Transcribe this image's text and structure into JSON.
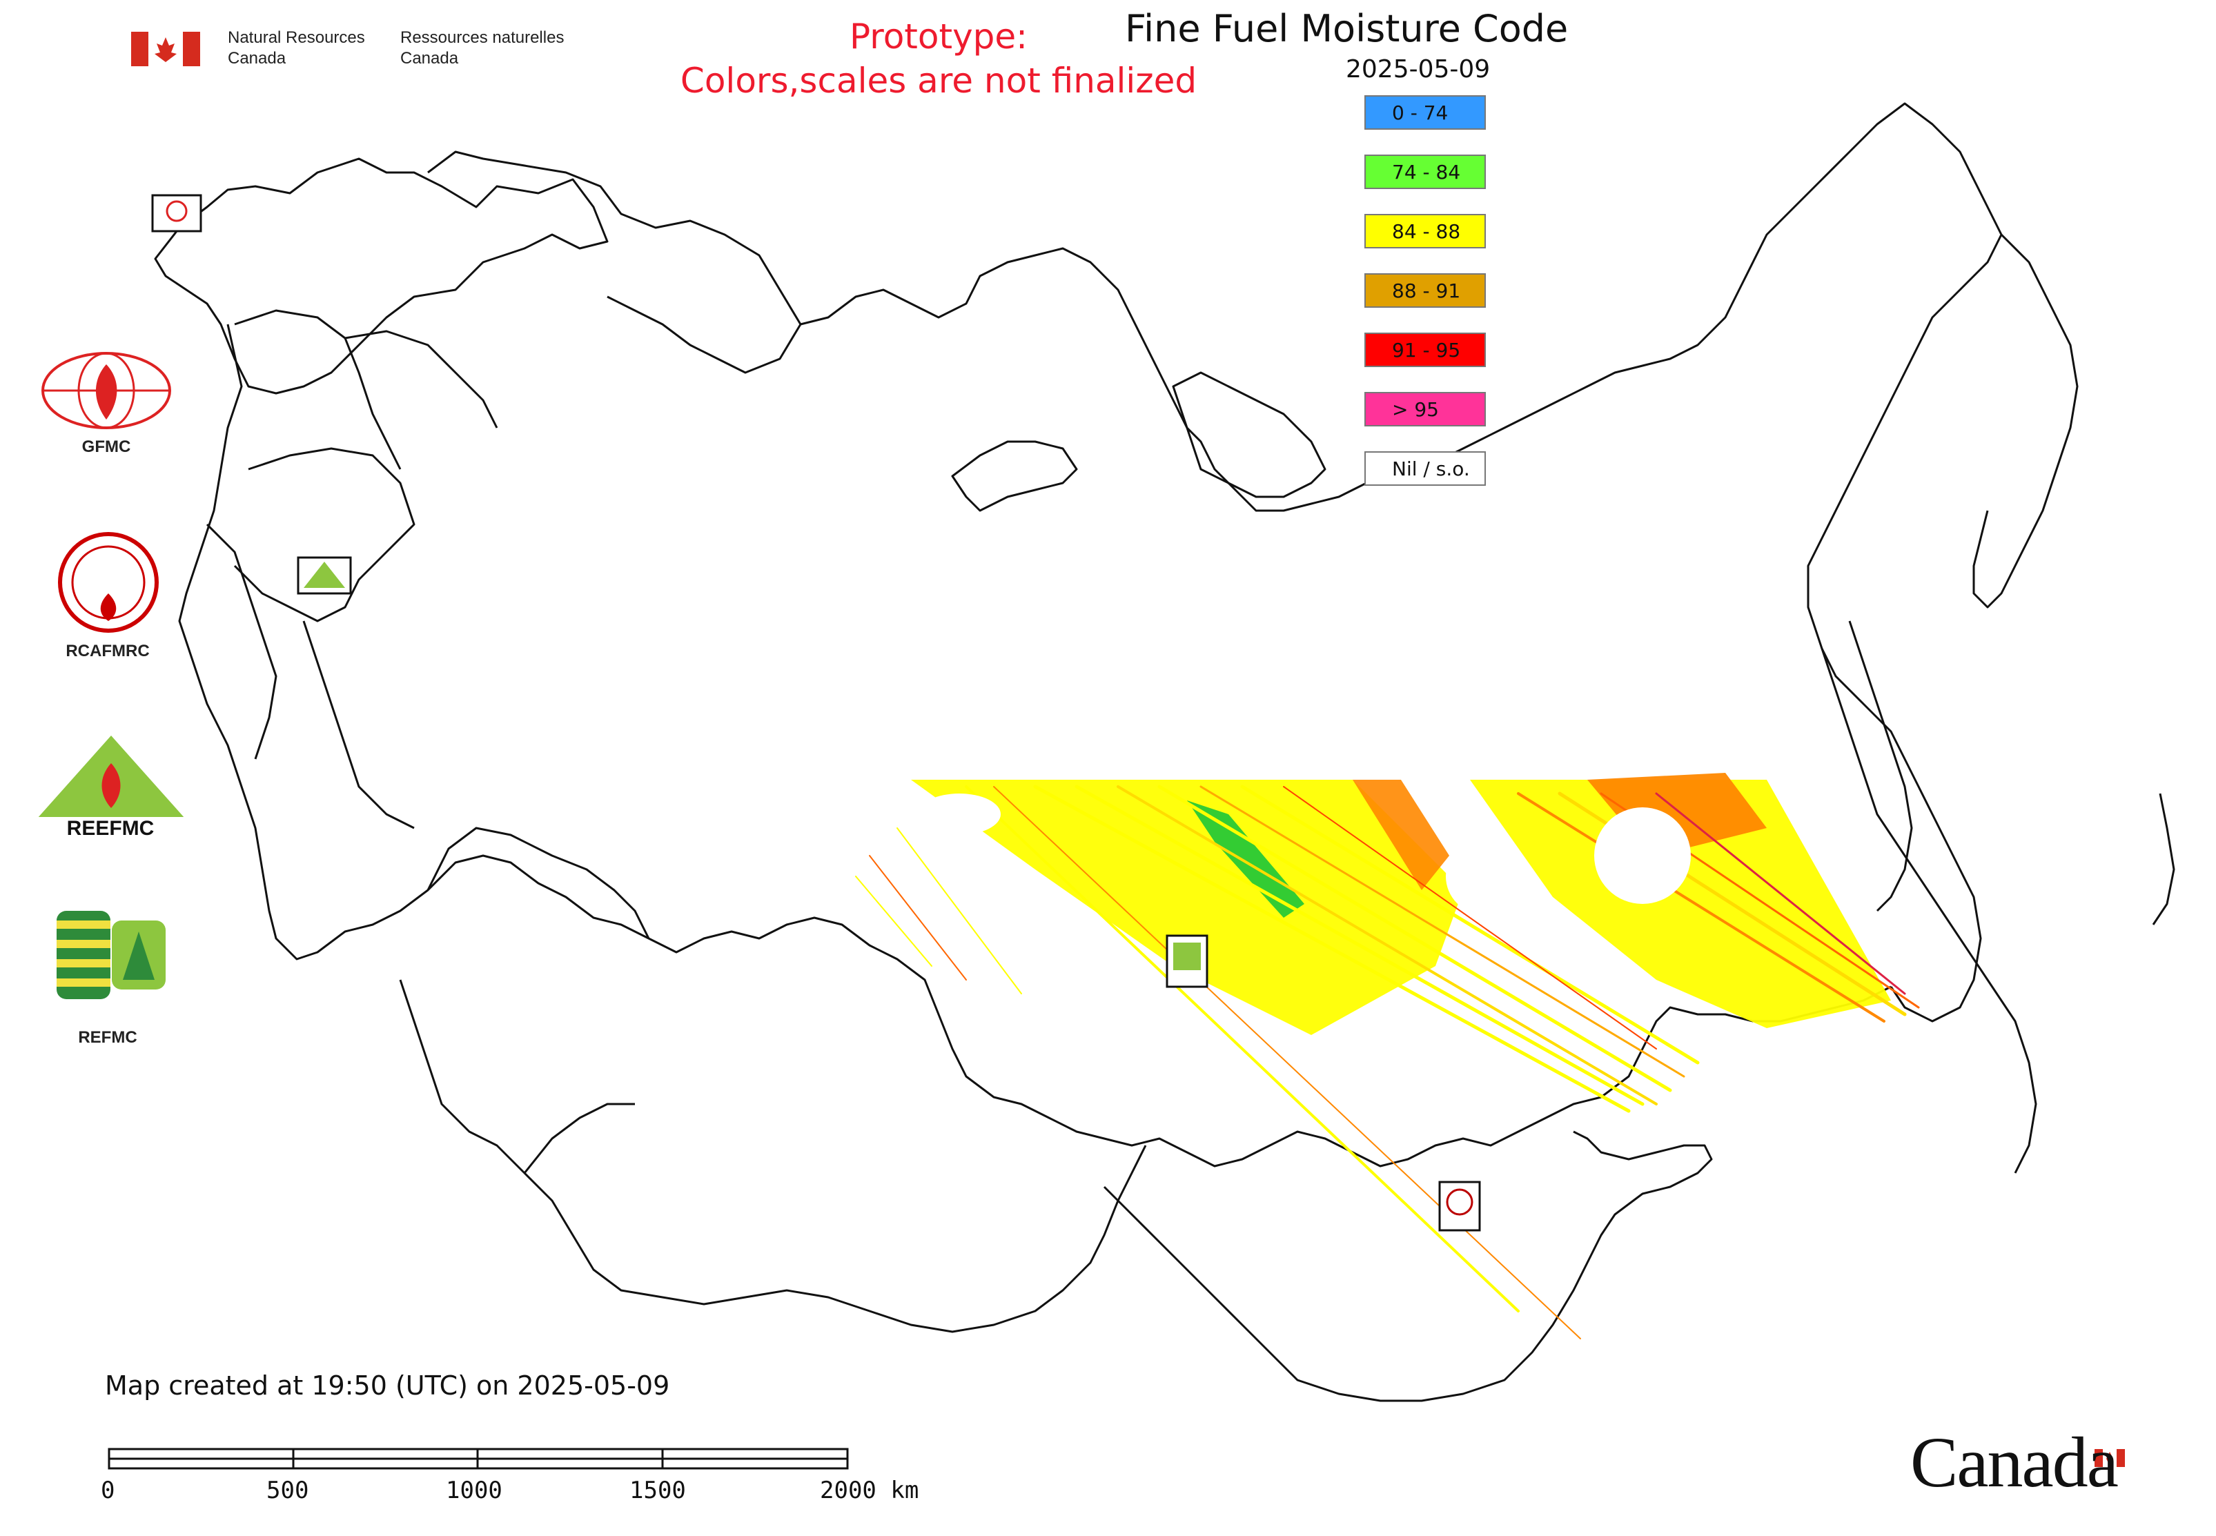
{
  "header": {
    "org_en_line1": "Natural Resources",
    "org_en_line2": "Canada",
    "org_fr_line1": "Ressources naturelles",
    "org_fr_line2": "Canada",
    "prototype_line1": "Prototype:",
    "prototype_line2": "Colors,scales are not finalized"
  },
  "map": {
    "title": "Fine Fuel Moisture Code",
    "date": "2025-05-09",
    "created_note": "Map created at 19:50 (UTC) on 2025-05-09"
  },
  "legend": {
    "items": [
      {
        "label": "0 - 74",
        "color": "#3399ff"
      },
      {
        "label": "74 - 84",
        "color": "#66ff33"
      },
      {
        "label": "84 - 88",
        "color": "#ffff00"
      },
      {
        "label": "88 - 91",
        "color": "#e0a000"
      },
      {
        "label": "91 - 95",
        "color": "#ff0000"
      },
      {
        "label": "> 95",
        "color": "#ff3399"
      },
      {
        "label": "Nil / s.o.",
        "color": "#ffffff"
      }
    ]
  },
  "organizations": [
    {
      "label": "GFMC",
      "icon": "gfmc-logo-icon"
    },
    {
      "label": "RCAFMRC",
      "icon": "rcafmrc-logo-icon"
    },
    {
      "label": "REEFMC",
      "icon": "reefmc-logo-icon"
    },
    {
      "label": "REFMC",
      "icon": "refmc-logo-icon"
    }
  ],
  "scale_bar": {
    "labels": [
      "0",
      "500",
      "1000",
      "1500",
      "2000 km"
    ]
  },
  "footer": {
    "wordmark": "Canada"
  }
}
